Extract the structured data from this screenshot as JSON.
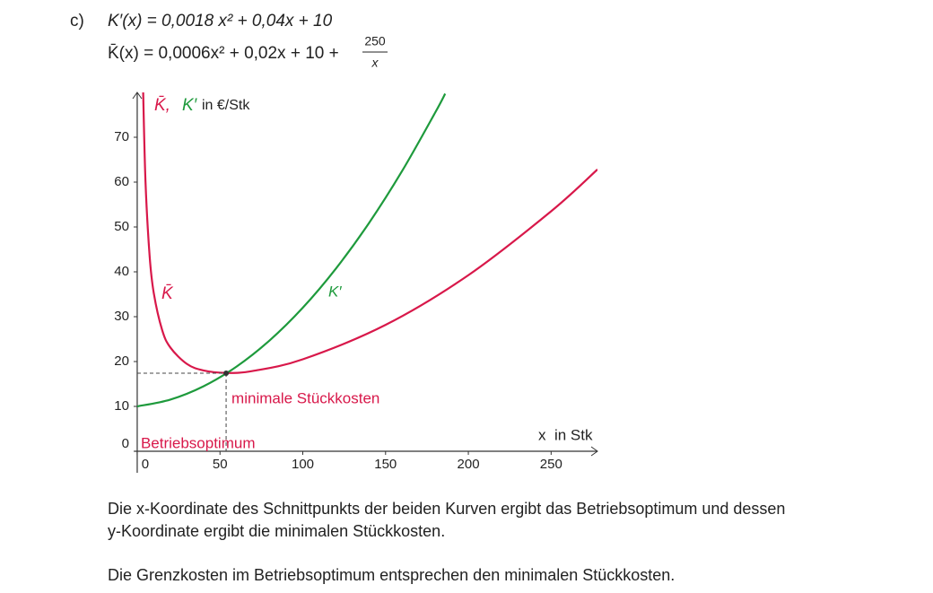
{
  "task_label": "c)",
  "formula_1": "K′(x) = 0,0018 x² + 0,04x + 10",
  "formula_2": {
    "lhs": "K̄(x) = 0,0006x² + 0,02x + 10 +",
    "numerator": "250",
    "denominator": "x"
  },
  "chart_data": {
    "type": "line",
    "y_label_parts": [
      "K̄,",
      "K′",
      "in €/Stk"
    ],
    "x_label": "x  in Stk",
    "xlim": [
      -1.6,
      278
    ],
    "ylim": [
      -4.8,
      80
    ],
    "xticks": [
      0,
      50,
      100,
      150,
      200,
      250
    ],
    "yticks": [
      0,
      10,
      20,
      30,
      40,
      50,
      60,
      70
    ],
    "series": [
      {
        "name": "K̄",
        "color": "#d8184a",
        "x": [
          3.5,
          5,
          7.5,
          10,
          15,
          20,
          30,
          40,
          54,
          70,
          100,
          150,
          200,
          250,
          278
        ],
        "values": [
          81.51,
          60.12,
          43.51,
          35.26,
          27.1,
          23.14,
          19.47,
          18.01,
          17.46,
          17.91,
          20.5,
          28.17,
          39.25,
          53.5,
          62.83
        ]
      },
      {
        "name": "K′",
        "color": "#1e9a3c",
        "x": [
          0,
          20,
          40,
          60,
          80,
          100,
          120,
          140,
          160,
          180,
          186
        ],
        "values": [
          10,
          11.52,
          14.48,
          18.88,
          24.72,
          32,
          40.72,
          50.88,
          62.48,
          75.52,
          79.71
        ]
      }
    ],
    "optimum": {
      "x": 53.7,
      "y": 17.4
    },
    "annotations": {
      "min_cost": "minimale Stückkosten",
      "optimum": "Betriebsoptimum"
    }
  },
  "paragraph_1": [
    "Die x-Koordinate des Schnittpunkts der beiden Kurven ergibt das Betriebsoptimum und dessen",
    "y-Koordinate ergibt die minimalen Stückkosten."
  ],
  "paragraph_2": "Die Grenzkosten im Betriebsoptimum entsprechen den minimalen Stückkosten."
}
